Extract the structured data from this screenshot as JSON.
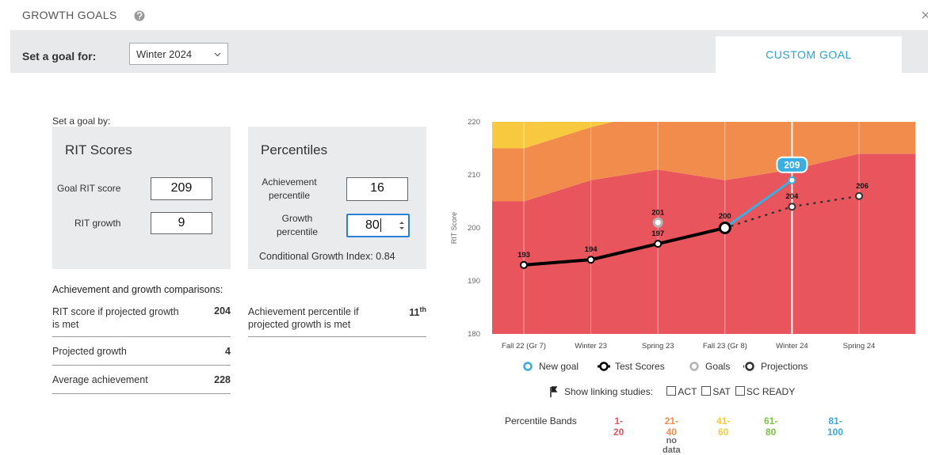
{
  "header": {
    "title": "GROWTH GOALS"
  },
  "toolbar": {
    "label": "Set a goal for:",
    "select": "Winter 2024",
    "tab": "CUSTOM GOAL"
  },
  "form": {
    "prompt": "Set a goal by:",
    "rit": {
      "title": "RIT Scores",
      "goal_label": "Goal RIT score",
      "goal_value": "209",
      "growth_label": "RIT growth",
      "growth_value": "9"
    },
    "percentiles": {
      "title": "Percentiles",
      "achievement_label": "Achievement percentile",
      "achievement_value": "16",
      "growth_label": "Growth percentile",
      "growth_value": "80",
      "cgi": "Conditional Growth Index: 0.84"
    }
  },
  "comparisons": {
    "title": "Achievement and growth comparisons:",
    "rit_projected": {
      "label": "RIT score if projected growth is met",
      "value": "204"
    },
    "percentile_projected": {
      "label": "Achievement percentile if projected growth is met",
      "value": "11",
      "suffix": "th"
    },
    "projected_growth": {
      "label": "Projected growth",
      "value": "4"
    },
    "average": {
      "label": "Average achievement",
      "value": "228"
    }
  },
  "chart_data": {
    "type": "line",
    "y_label": "RIT Score",
    "categories": [
      "Fall 22 (Gr 7)",
      "Winter 23",
      "Spring 23",
      "Fall 23 (Gr 8)",
      "Winter 24",
      "Spring 24"
    ],
    "ylim": [
      180,
      220
    ],
    "yticks": [
      180,
      190,
      200,
      210,
      220
    ],
    "series": [
      {
        "name": "New goal",
        "color": "#3aaee0",
        "values": [
          null,
          null,
          null,
          200,
          209,
          null
        ]
      },
      {
        "name": "Test Scores",
        "color": "#000000",
        "values": [
          193,
          194,
          197,
          200,
          null,
          null
        ]
      },
      {
        "name": "Goals",
        "color": "#b4b4b4",
        "line": false,
        "values": [
          null,
          null,
          201,
          null,
          null,
          null
        ]
      },
      {
        "name": "Projections",
        "color": "#333333",
        "dashed": true,
        "values": [
          null,
          null,
          null,
          200,
          204,
          206
        ]
      }
    ],
    "bands_title": "Percentile Bands",
    "bands": [
      {
        "name": "1-20",
        "color": "#e8555c",
        "values": [
          205,
          209,
          211,
          209,
          211,
          214
        ]
      },
      {
        "name": "21-40",
        "color": "#f28c4c",
        "note": "no data",
        "values": [
          215,
          219,
          222,
          222,
          222,
          222
        ]
      },
      {
        "name": "41-60",
        "color": "#f8c93e",
        "values": [
          230,
          230,
          230,
          230,
          230,
          230
        ]
      },
      {
        "name": "61-80",
        "color": "#7cc242"
      },
      {
        "name": "81-100",
        "color": "#3aa7d8"
      }
    ]
  },
  "linking": {
    "label": "Show linking studies:",
    "options": [
      "ACT",
      "SAT",
      "SC READY"
    ]
  }
}
